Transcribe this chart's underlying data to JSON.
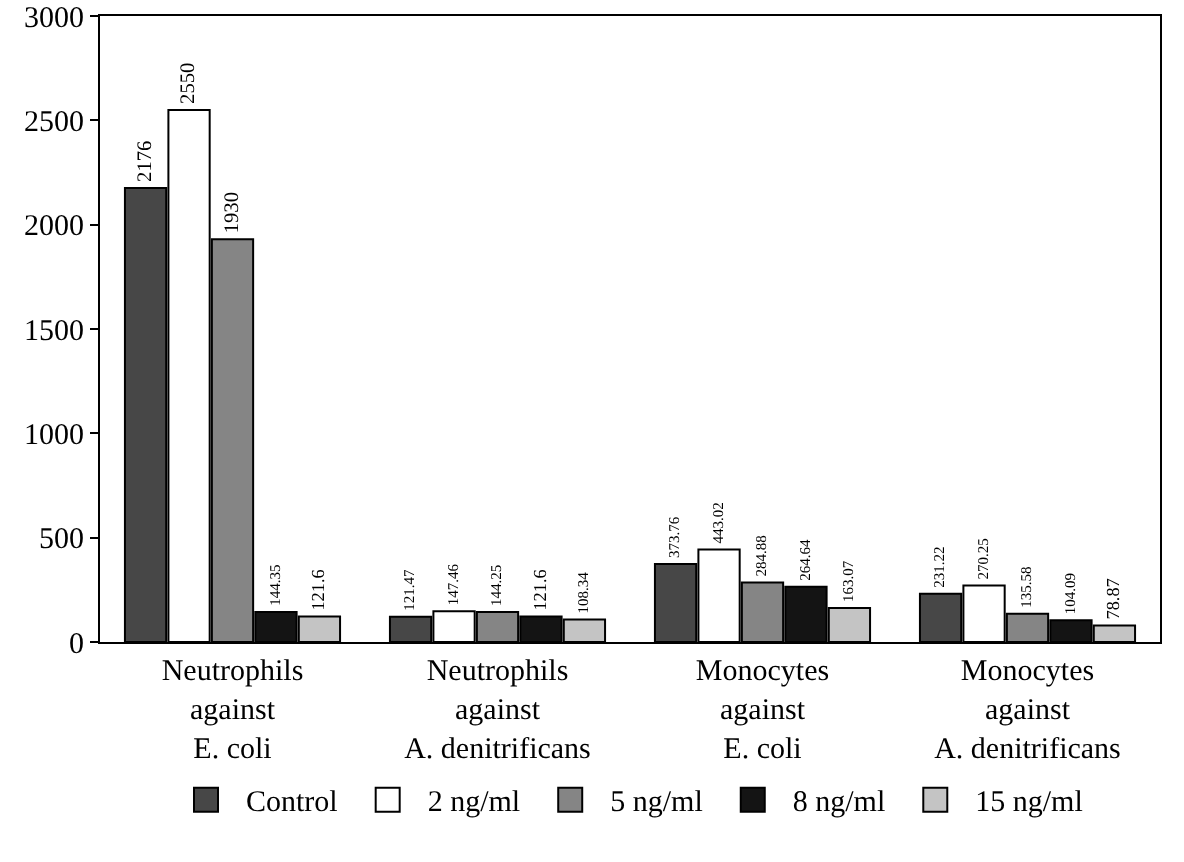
{
  "chart_data": {
    "type": "bar",
    "categories": [
      "Neutrophils against E. coli",
      "Neutrophils against A. denitrificans",
      "Monocytes against E. coli",
      "Monocytes against A. denitrificans"
    ],
    "series": [
      {
        "name": "Control",
        "color": "#474747",
        "values": [
          2176,
          121.47,
          373.76,
          231.22
        ]
      },
      {
        "name": "2 ng/ml",
        "color": "#ffffff",
        "values": [
          2550,
          147.46,
          443.02,
          270.25
        ]
      },
      {
        "name": "5 ng/ml",
        "color": "#858585",
        "values": [
          1930,
          144.25,
          284.88,
          135.58
        ]
      },
      {
        "name": "8 ng/ml",
        "color": "#141414",
        "values": [
          144.35,
          121.6,
          264.64,
          104.09
        ]
      },
      {
        "name": "15 ng/ml",
        "color": "#c4c4c4",
        "values": [
          121.6,
          108.34,
          163.07,
          78.87
        ]
      }
    ],
    "ylim": [
      0,
      3000
    ],
    "yticks": [
      0,
      500,
      1000,
      1500,
      2000,
      2500,
      3000
    ],
    "grid": false,
    "legend": "bottom",
    "data_labels": true
  }
}
